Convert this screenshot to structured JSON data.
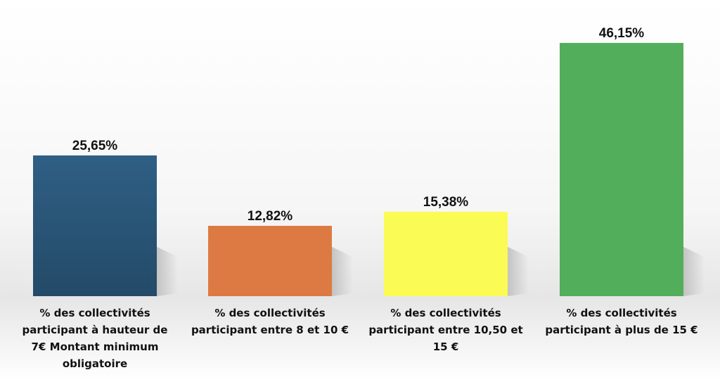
{
  "chart_data": {
    "type": "bar",
    "title": "",
    "xlabel": "",
    "ylabel": "",
    "ylim": [
      0,
      50
    ],
    "grid": false,
    "legend": "none",
    "categories": [
      "% des collectivités participant à hauteur de 7€ Montant minimum obligatoire",
      "% des collectivités participant entre 8 et 10 €",
      "% des collectivités participant entre 10,50 et 15 €",
      "% des collectivités participant à plus de 15 €"
    ],
    "values": [
      25.65,
      12.82,
      15.38,
      46.15
    ],
    "value_labels": [
      "25,65%",
      "12,82%",
      "15,38%",
      "46,15%"
    ],
    "colors": [
      "#2a5578",
      "#dd7a43",
      "#fbfb55",
      "#52ae5a"
    ]
  }
}
